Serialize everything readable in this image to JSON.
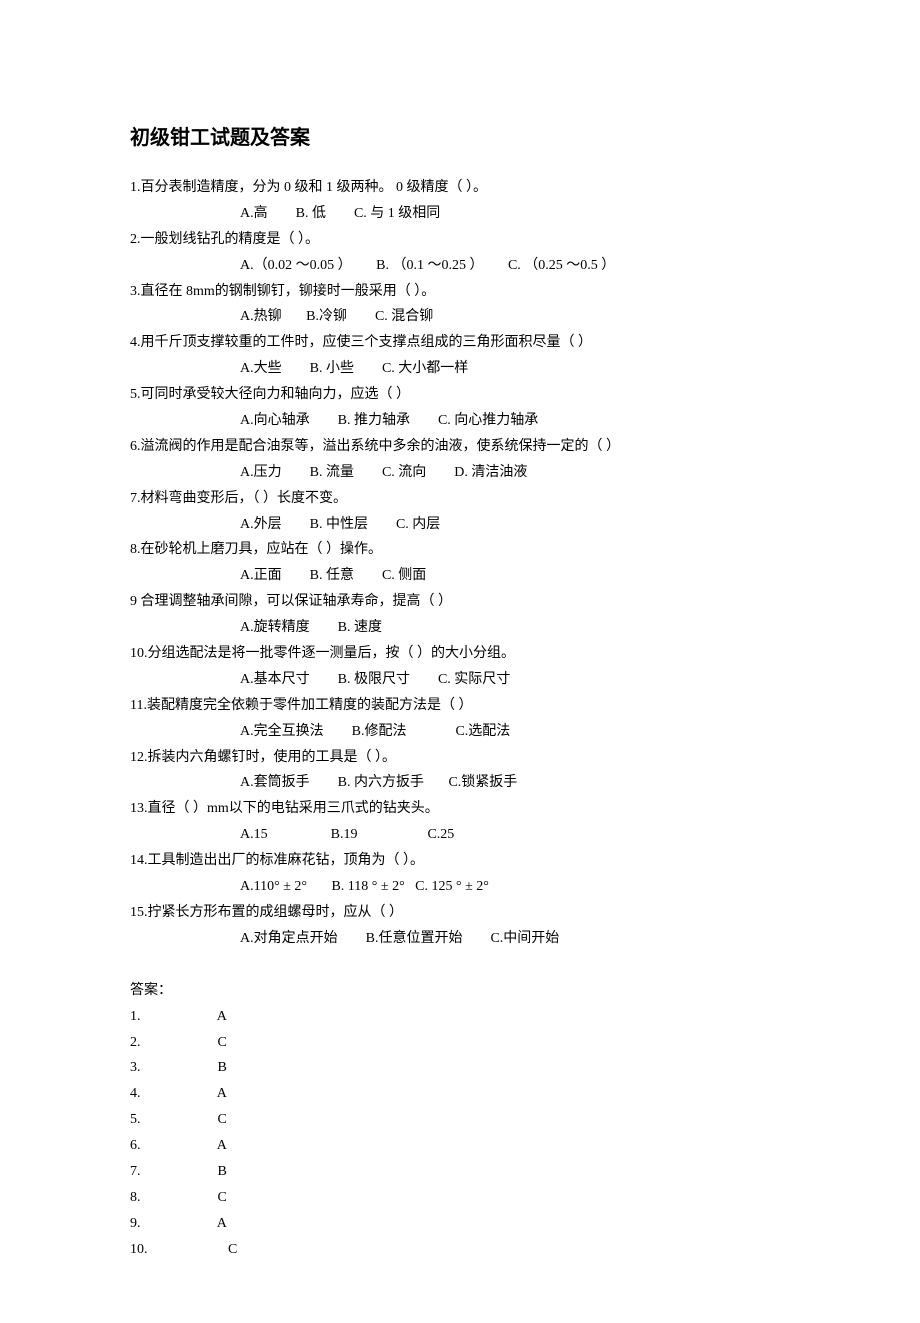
{
  "title": "初级钳工试题及答案",
  "questions": [
    {
      "text": "1.百分表制造精度，分为   0 级和 1 级两种。 0 级精度（        ）。",
      "options": "A.高        B. 低        C. 与 1 级相同"
    },
    {
      "text": "2.一般划线钻孔的精度是（           ）。",
      "options": "A.（0.02 ～0.05 ）       B. （0.1 ～0.25 ）       C. （0.25 ～0.5 ）"
    },
    {
      "text": "3.直径在  8mm的钢制铆钉，铆接时一般采用（           ）。",
      "options": "A.热铆       B.冷铆        C. 混合铆"
    },
    {
      "text": "4.用千斤顶支撑较重的工件时，应使三个支撑点组成的三角形面积尽量（                    ）",
      "options": "A.大些        B. 小些        C. 大小都一样"
    },
    {
      "text": "5.可同时承受较大径向力和轴向力，应选（              ）",
      "options": "A.向心轴承        B. 推力轴承        C. 向心推力轴承"
    },
    {
      "text": "6.溢流阀的作用是配合油泵等，溢出系统中多余的油液，使系统保持一定的（                    ）",
      "options": "A.压力        B. 流量        C. 流向        D. 清洁油液"
    },
    {
      "text": "7.材料弯曲变形后，（           ）长度不变。",
      "options": "A.外层        B. 中性层        C. 内层"
    },
    {
      "text": "8.在砂轮机上磨刀具，应站在（            ）操作。",
      "options": "A.正面        B. 任意        C. 侧面"
    },
    {
      "text": "9 合理调整轴承间隙，可以保证轴承寿命，提高（               ）",
      "options": "A.旋转精度        B. 速度"
    },
    {
      "text": "10.分组选配法是将一批零件逐一测量后，按（             ）的大小分组。",
      "options": "A.基本尺寸        B. 极限尺寸        C. 实际尺寸"
    },
    {
      "text": "11.装配精度完全依赖于零件加工精度的装配方法是（               ）",
      "options": "A.完全互换法        B.修配法              C.选配法"
    },
    {
      "text": "12.拆装内六角螺钉时，使用的工具是（               ）。",
      "options": "A.套筒扳手        B. 内六方扳手       C.锁紧扳手"
    },
    {
      "text": "13.直径（         ）mm以下的电钻采用三爪式的钻夹头。",
      "options": "A.15                  B.19                    C.25"
    },
    {
      "text": "14.工具制造出出厂的标准麻花钻，顶角为（                 ）。",
      "options": "A.110° ± 2°       B. 118 ° ± 2°   C. 125 ° ± 2°"
    },
    {
      "text": "15.拧紧长方形布置的成组螺母时，应从（                            ）",
      "options": "A.对角定点开始        B.任意位置开始        C.中间开始"
    }
  ],
  "answerHeader": "答案：",
  "answers": [
    {
      "num": "1.",
      "ans": "A"
    },
    {
      "num": "2.",
      "ans": "C"
    },
    {
      "num": "3.",
      "ans": "B"
    },
    {
      "num": "4.",
      "ans": "A"
    },
    {
      "num": "5.",
      "ans": "C"
    },
    {
      "num": "6.",
      "ans": "A"
    },
    {
      "num": "7.",
      "ans": "B"
    },
    {
      "num": "8.",
      "ans": "C"
    },
    {
      "num": "9.",
      "ans": "A"
    },
    {
      "num": "10.",
      "ans": "C"
    }
  ]
}
